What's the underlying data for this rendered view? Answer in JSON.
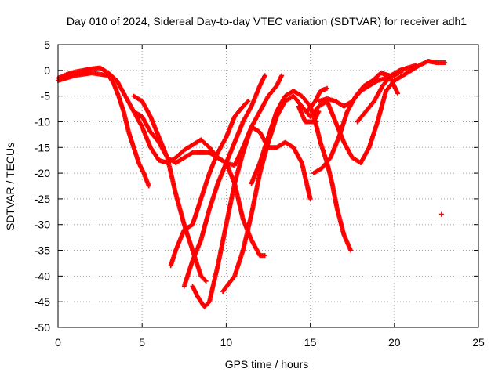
{
  "chart_data": {
    "type": "scatter",
    "title": "Day 010 of 2024, Sidereal Day-to-day VTEC variation (SDTVAR) for receiver adh1",
    "xlabel": "GPS time / hours",
    "ylabel": "SDTVAR / TECUs",
    "xlim": [
      0,
      25
    ],
    "ylim": [
      -50,
      5
    ],
    "xticks": [
      0,
      5,
      10,
      15,
      20,
      25
    ],
    "yticks": [
      5,
      0,
      -5,
      -10,
      -15,
      -20,
      -25,
      -30,
      -35,
      -40,
      -45,
      -50
    ],
    "grid": true,
    "marker": "+",
    "color": "#ff0000",
    "series": [
      {
        "points": [
          [
            0,
            -1.5
          ],
          [
            0.5,
            -0.8
          ],
          [
            1,
            -0.3
          ],
          [
            1.5,
            0
          ],
          [
            2,
            0.3
          ],
          [
            2.5,
            0.5
          ],
          [
            3,
            -0.5
          ],
          [
            3.5,
            -2
          ],
          [
            4,
            -5
          ],
          [
            4.5,
            -8
          ],
          [
            5,
            -11
          ],
          [
            5.5,
            -15
          ],
          [
            6,
            -17.5
          ],
          [
            6.5,
            -18
          ],
          [
            7,
            -17
          ],
          [
            7.5,
            -15.5
          ],
          [
            8,
            -14.5
          ],
          [
            8.5,
            -13.5
          ],
          [
            9,
            -15
          ],
          [
            9.5,
            -17
          ],
          [
            10,
            -18
          ],
          [
            10.5,
            -18.5
          ],
          [
            11,
            -15
          ],
          [
            11.5,
            -11
          ],
          [
            12,
            -12
          ],
          [
            12.5,
            -15
          ],
          [
            13,
            -15
          ],
          [
            13.5,
            -14
          ],
          [
            14,
            -15
          ],
          [
            14.5,
            -18
          ],
          [
            15,
            -25
          ]
        ]
      },
      {
        "points": [
          [
            0,
            -2
          ],
          [
            0.5,
            -1.5
          ],
          [
            1,
            -1
          ],
          [
            2,
            -0.5
          ],
          [
            3,
            -1
          ],
          [
            3.3,
            -2.5
          ],
          [
            3.6,
            -5
          ],
          [
            3.9,
            -8
          ],
          [
            4.2,
            -12
          ],
          [
            4.5,
            -15
          ],
          [
            4.8,
            -18
          ],
          [
            5.1,
            -20
          ],
          [
            5.4,
            -22.5
          ]
        ]
      },
      {
        "points": [
          [
            4.5,
            -5
          ],
          [
            5,
            -6
          ],
          [
            5.5,
            -9
          ],
          [
            6,
            -13
          ],
          [
            6.5,
            -17
          ],
          [
            7,
            -24
          ],
          [
            7.5,
            -30
          ],
          [
            8,
            -35
          ],
          [
            8.5,
            -40
          ],
          [
            8.8,
            -41
          ]
        ]
      },
      {
        "points": [
          [
            4.5,
            -8
          ],
          [
            5,
            -9
          ],
          [
            5.5,
            -12
          ],
          [
            6,
            -14
          ],
          [
            6.5,
            -17
          ],
          [
            7,
            -18
          ],
          [
            7.5,
            -17
          ],
          [
            8,
            -16
          ],
          [
            8.5,
            -16
          ],
          [
            9,
            -16
          ],
          [
            9.5,
            -17
          ],
          [
            10,
            -18
          ],
          [
            10.5,
            -22
          ],
          [
            11,
            -29
          ],
          [
            11.5,
            -33
          ],
          [
            12,
            -36
          ],
          [
            12.3,
            -36
          ]
        ]
      },
      {
        "points": [
          [
            6.7,
            -38
          ],
          [
            7,
            -35
          ],
          [
            7.5,
            -31
          ],
          [
            8,
            -30
          ],
          [
            8.5,
            -25
          ],
          [
            9,
            -20
          ],
          [
            9.5,
            -16
          ],
          [
            10,
            -13
          ],
          [
            10.5,
            -9
          ],
          [
            11,
            -7
          ],
          [
            11.3,
            -6
          ]
        ]
      },
      {
        "points": [
          [
            7.5,
            -42
          ],
          [
            8,
            -37
          ],
          [
            8.5,
            -33
          ],
          [
            9,
            -27
          ],
          [
            9.5,
            -22
          ],
          [
            10,
            -18
          ],
          [
            10.5,
            -14
          ],
          [
            11,
            -10
          ],
          [
            11.5,
            -7
          ],
          [
            12,
            -3
          ],
          [
            12.3,
            -1
          ]
        ]
      },
      {
        "points": [
          [
            8,
            -42
          ],
          [
            8.3,
            -44
          ],
          [
            8.7,
            -46
          ],
          [
            9,
            -45
          ],
          [
            9.5,
            -38
          ],
          [
            10,
            -30
          ],
          [
            10.5,
            -22
          ],
          [
            11,
            -16
          ],
          [
            11.5,
            -11
          ],
          [
            12,
            -8
          ],
          [
            12.5,
            -5
          ],
          [
            13,
            -3
          ],
          [
            13.3,
            -1
          ]
        ]
      },
      {
        "points": [
          [
            9.8,
            -43
          ],
          [
            10.5,
            -40
          ],
          [
            11,
            -35
          ],
          [
            11.5,
            -28
          ],
          [
            12,
            -20
          ],
          [
            12.5,
            -14
          ],
          [
            13,
            -9
          ],
          [
            13.5,
            -6
          ],
          [
            14,
            -5
          ],
          [
            14.5,
            -7
          ],
          [
            15,
            -9
          ],
          [
            15.5,
            -7
          ],
          [
            16,
            -6
          ],
          [
            16.5,
            -10
          ],
          [
            17,
            -14
          ],
          [
            17.5,
            -17
          ],
          [
            18,
            -18
          ],
          [
            18.5,
            -15
          ],
          [
            19,
            -10
          ],
          [
            19.5,
            -4
          ],
          [
            20,
            -2
          ],
          [
            20.5,
            -1
          ],
          [
            21,
            0
          ],
          [
            21.5,
            1
          ],
          [
            22,
            1.8
          ],
          [
            22.5,
            1.5
          ],
          [
            23,
            1.5
          ]
        ]
      },
      {
        "points": [
          [
            11.5,
            -22
          ],
          [
            12,
            -18
          ],
          [
            12.5,
            -13
          ],
          [
            13,
            -8
          ],
          [
            13.5,
            -5
          ],
          [
            14,
            -4
          ],
          [
            14.5,
            -5
          ],
          [
            15,
            -7
          ],
          [
            15.3,
            -10
          ],
          [
            15.6,
            -14
          ],
          [
            16,
            -18
          ],
          [
            16.3,
            -22
          ],
          [
            16.6,
            -27
          ],
          [
            17,
            -32
          ],
          [
            17.4,
            -35
          ]
        ]
      },
      {
        "points": [
          [
            14.8,
            -8
          ],
          [
            15.3,
            -6
          ],
          [
            15.6,
            -4
          ],
          [
            16,
            -3.5
          ]
        ]
      },
      {
        "points": [
          [
            15.2,
            -20
          ],
          [
            15.7,
            -19
          ],
          [
            16.2,
            -17
          ],
          [
            16.7,
            -13
          ],
          [
            17.2,
            -8
          ],
          [
            17.7,
            -5
          ],
          [
            18.2,
            -3
          ],
          [
            18.7,
            -2
          ],
          [
            19.2,
            -0.5
          ],
          [
            19.7,
            -1
          ],
          [
            20.2,
            -4.5
          ]
        ]
      },
      {
        "points": [
          [
            14.3,
            -7
          ],
          [
            14.7,
            -10
          ],
          [
            15.2,
            -10
          ],
          [
            15.5,
            -8
          ]
        ]
      },
      {
        "points": [
          [
            15.5,
            -6
          ],
          [
            16,
            -5.5
          ],
          [
            16.5,
            -6
          ],
          [
            17,
            -7
          ],
          [
            17.5,
            -6
          ],
          [
            18,
            -4
          ],
          [
            18.5,
            -3
          ],
          [
            19,
            -2
          ],
          [
            19.5,
            -1.5
          ],
          [
            20,
            -1
          ],
          [
            20.5,
            0
          ]
        ]
      },
      {
        "points": [
          [
            17.8,
            -10
          ],
          [
            18.3,
            -8
          ],
          [
            18.8,
            -6
          ],
          [
            19.3,
            -3
          ],
          [
            19.8,
            -1
          ],
          [
            20.3,
            0
          ],
          [
            20.8,
            0.5
          ],
          [
            21.3,
            1
          ]
        ]
      },
      {
        "points": [
          [
            22.8,
            -28
          ]
        ]
      }
    ]
  }
}
